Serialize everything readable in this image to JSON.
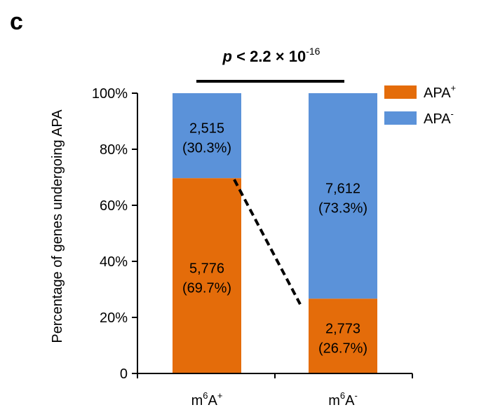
{
  "panel_label": "c",
  "chart_data": {
    "type": "bar",
    "stacked": true,
    "percent_stacked": true,
    "categories_display": {
      "m6A_plus": {
        "base": "m",
        "sup1": "6",
        "mid": "A",
        "sup2": "+"
      },
      "m6A_minus": {
        "base": "m",
        "sup1": "6",
        "mid": "A",
        "sup2": "-"
      }
    },
    "categories": [
      "m6A+",
      "m6A-"
    ],
    "series": [
      {
        "name": "APA+",
        "name_display": {
          "base": "APA",
          "sup": "+"
        },
        "color": "#E46C0A",
        "values": [
          69.7,
          26.7
        ],
        "counts": [
          "5,776",
          "2,773"
        ],
        "percent_labels": [
          "(69.7%)",
          "(26.7%)"
        ]
      },
      {
        "name": "APA-",
        "name_display": {
          "base": "APA",
          "sup": "-"
        },
        "color": "#5B92D9",
        "values": [
          30.3,
          73.3
        ],
        "counts": [
          "2,515",
          "7,612"
        ],
        "percent_labels": [
          "(30.3%)",
          "(73.3%)"
        ]
      }
    ],
    "ylabel": "Percentage of genes undergoing APA",
    "ylim": [
      0,
      100
    ],
    "yticks": [
      0,
      20,
      40,
      60,
      80,
      100
    ],
    "ytick_labels": [
      "0",
      "20%",
      "40%",
      "60%",
      "80%",
      "100%"
    ],
    "legend_position": "top-right",
    "grid": false,
    "annotation": {
      "p_symbol": "p",
      "p_text": " < 2.2 × 10",
      "p_exponent": "-16"
    },
    "connector": "dashed line from top of APA+ segment in m6A+ bar to top of APA+ segment in m6A- bar"
  }
}
